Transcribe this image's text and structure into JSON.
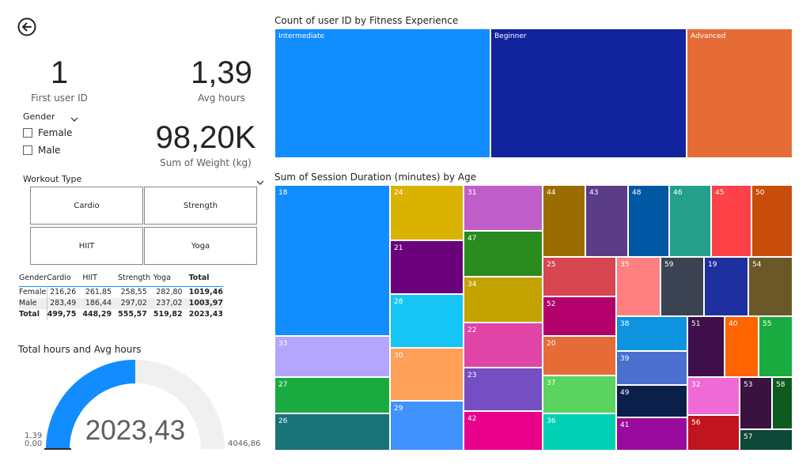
{
  "back_icon": "back-arrow-icon",
  "cards": {
    "first_user": {
      "value": "1",
      "label": "First user ID"
    },
    "avg_hours": {
      "value": "1,39",
      "label": "Avg hours"
    },
    "sum_weight": {
      "value": "98,20K",
      "label": "Sum of Weight (kg)"
    }
  },
  "gender_slicer": {
    "title": "Gender",
    "chevron_icon": "chevron-down-icon",
    "options": [
      "Female",
      "Male"
    ]
  },
  "workout_slicer": {
    "title": "Workout Type",
    "chevron_icon": "chevron-down-icon",
    "options": [
      "Cardio",
      "Strength",
      "HIIT",
      "Yoga"
    ]
  },
  "matrix": {
    "columns": [
      "Gender",
      "Cardio",
      "HIIT",
      "Strength",
      "Yoga",
      "Total"
    ],
    "rows": [
      [
        "Female",
        "216,26",
        "261,85",
        "258,55",
        "282,80",
        "1019,46"
      ],
      [
        "Male",
        "283,49",
        "186,44",
        "297,02",
        "237,02",
        "1003,97"
      ]
    ],
    "total": [
      "Total",
      "499,75",
      "448,29",
      "555,57",
      "519,82",
      "2023,43"
    ]
  },
  "gauge": {
    "title": "Total hours and Avg hours",
    "value_label": "2023,43",
    "value": 2023.43,
    "min": 0,
    "max": 4046.86,
    "min_label": "0,00",
    "max_label": "4046,86",
    "target_label": "1,39",
    "target": 1.39,
    "fill_color": "#118dff",
    "track_color": "#f0f0f0"
  },
  "chart_data": [
    {
      "type": "treemap",
      "title": "Count of user ID by Fitness Experience",
      "items": [
        {
          "label": "Intermediate",
          "color": "#118dff"
        },
        {
          "label": "Beginner",
          "color": "#12239e"
        },
        {
          "label": "Advanced",
          "color": "#e66c37"
        }
      ]
    },
    {
      "type": "treemap",
      "title": "Sum of Session Duration (minutes) by Age",
      "items": [
        {
          "label": "18",
          "color": "#118dff"
        },
        {
          "label": "33",
          "color": "#b4a5ff"
        },
        {
          "label": "27",
          "color": "#1aab40"
        },
        {
          "label": "26",
          "color": "#197278"
        },
        {
          "label": "24",
          "color": "#d9b300"
        },
        {
          "label": "21",
          "color": "#6b007b"
        },
        {
          "label": "28",
          "color": "#15c6f4"
        },
        {
          "label": "30",
          "color": "#fea057"
        },
        {
          "label": "29",
          "color": "#4092ff"
        },
        {
          "label": "31",
          "color": "#bf5dc9"
        },
        {
          "label": "47",
          "color": "#2a8b1e"
        },
        {
          "label": "34",
          "color": "#c4a300"
        },
        {
          "label": "22",
          "color": "#e044a7"
        },
        {
          "label": "23",
          "color": "#744ec2"
        },
        {
          "label": "42",
          "color": "#e8008a"
        },
        {
          "label": "44",
          "color": "#9b6c00"
        },
        {
          "label": "43",
          "color": "#5b3c87"
        },
        {
          "label": "48",
          "color": "#0057a3"
        },
        {
          "label": "46",
          "color": "#24a08a"
        },
        {
          "label": "45",
          "color": "#fe4247"
        },
        {
          "label": "50",
          "color": "#c84d0a"
        },
        {
          "label": "25",
          "color": "#d64550"
        },
        {
          "label": "52",
          "color": "#b3006a"
        },
        {
          "label": "20",
          "color": "#e66c37"
        },
        {
          "label": "37",
          "color": "#5ad45f"
        },
        {
          "label": "36",
          "color": "#00d1b5"
        },
        {
          "label": "35",
          "color": "#ff8080"
        },
        {
          "label": "59",
          "color": "#3b4252"
        },
        {
          "label": "19",
          "color": "#1e2fa0"
        },
        {
          "label": "54",
          "color": "#6b5829"
        },
        {
          "label": "38",
          "color": "#0d93e0"
        },
        {
          "label": "39",
          "color": "#4a6fcf"
        },
        {
          "label": "49",
          "color": "#0b1f4b"
        },
        {
          "label": "41",
          "color": "#990b9e"
        },
        {
          "label": "51",
          "color": "#3f0f4b"
        },
        {
          "label": "40",
          "color": "#ff6400"
        },
        {
          "label": "55",
          "color": "#1aab40"
        },
        {
          "label": "32",
          "color": "#f06ad6"
        },
        {
          "label": "56",
          "color": "#c0141f"
        },
        {
          "label": "53",
          "color": "#3a1240"
        },
        {
          "label": "58",
          "color": "#0e5b1f"
        },
        {
          "label": "57",
          "color": "#0e4837"
        }
      ]
    }
  ]
}
